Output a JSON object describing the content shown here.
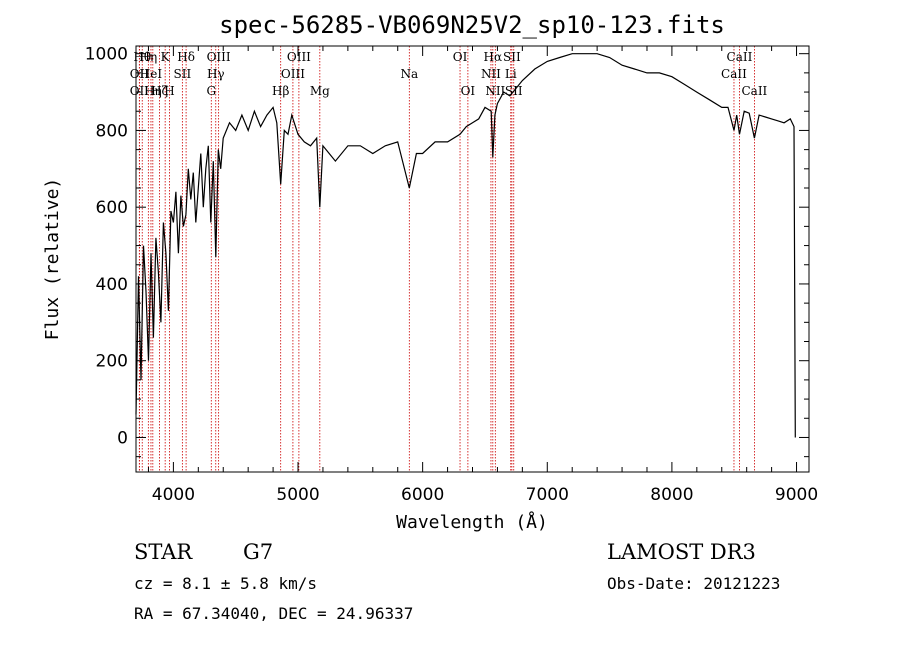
{
  "chart_data": {
    "type": "line",
    "title": "spec-56285-VB069N25V2_sp10-123.fits",
    "xlabel": "Wavelength (Å)",
    "ylabel": "Flux (relative)",
    "xlim": [
      3700,
      9100
    ],
    "ylim": [
      -90,
      1020
    ],
    "xticks": [
      4000,
      5000,
      6000,
      7000,
      8000,
      9000
    ],
    "yticks": [
      0,
      200,
      400,
      600,
      800,
      1000
    ],
    "grid": false,
    "line_color": "#000000",
    "marker_color": "#cc0000",
    "series": [
      {
        "x": [
          3700,
          3720,
          3740,
          3760,
          3780,
          3800,
          3820,
          3840,
          3860,
          3880,
          3900,
          3920,
          3940,
          3960,
          3980,
          4000,
          4020,
          4040,
          4060,
          4080,
          4100,
          4120,
          4140,
          4160,
          4180,
          4200,
          4220,
          4240,
          4260,
          4280,
          4300,
          4320,
          4340,
          4360,
          4380,
          4400,
          4450,
          4500,
          4550,
          4600,
          4650,
          4700,
          4750,
          4800,
          4830,
          4861,
          4890,
          4920,
          4950,
          5000,
          5050,
          5100,
          5150,
          5175,
          5200,
          5250,
          5300,
          5400,
          5500,
          5600,
          5700,
          5800,
          5893,
          5950,
          6000,
          6100,
          6200,
          6300,
          6350,
          6400,
          6450,
          6500,
          6550,
          6563,
          6580,
          6600,
          6650,
          6700,
          6800,
          6900,
          7000,
          7100,
          7200,
          7300,
          7400,
          7500,
          7600,
          7700,
          7800,
          7900,
          8000,
          8100,
          8200,
          8300,
          8400,
          8450,
          8498,
          8520,
          8542,
          8580,
          8620,
          8662,
          8700,
          8750,
          8800,
          8850,
          8900,
          8950,
          8980,
          8990
        ],
        "y": [
          60,
          420,
          150,
          500,
          380,
          200,
          480,
          260,
          520,
          430,
          300,
          560,
          480,
          330,
          590,
          560,
          640,
          480,
          630,
          550,
          580,
          700,
          620,
          690,
          560,
          650,
          740,
          600,
          700,
          760,
          560,
          720,
          470,
          750,
          700,
          780,
          820,
          800,
          840,
          800,
          850,
          810,
          840,
          860,
          820,
          660,
          800,
          790,
          840,
          790,
          770,
          760,
          780,
          600,
          760,
          740,
          720,
          760,
          760,
          740,
          760,
          770,
          650,
          740,
          740,
          770,
          770,
          790,
          810,
          820,
          830,
          860,
          850,
          730,
          840,
          870,
          900,
          890,
          930,
          960,
          980,
          990,
          1000,
          1000,
          1000,
          990,
          970,
          960,
          950,
          950,
          940,
          920,
          900,
          880,
          860,
          860,
          800,
          840,
          790,
          850,
          845,
          780,
          840,
          835,
          830,
          825,
          820,
          830,
          810,
          0
        ]
      }
    ],
    "lines": [
      {
        "x": 3750,
        "row": 1,
        "label": "Hθ"
      },
      {
        "x": 3727,
        "row": 2,
        "label": "OII"
      },
      {
        "x": 3727,
        "row": 3,
        "label": "OII"
      },
      {
        "x": 3799,
        "row": 1,
        "label": "Hη"
      },
      {
        "x": 3820,
        "row": 2,
        "label": "HeI"
      },
      {
        "x": 3835,
        "row": 3,
        "label": "Hη"
      },
      {
        "x": 3889,
        "row": 3,
        "label": "Hζ"
      },
      {
        "x": 3934,
        "row": 1,
        "label": "K"
      },
      {
        "x": 3969,
        "row": 3,
        "label": "H"
      },
      {
        "x": 4072,
        "row": 2,
        "label": "SII"
      },
      {
        "x": 4102,
        "row": 1,
        "label": "Hδ"
      },
      {
        "x": 4304,
        "row": 3,
        "label": "G"
      },
      {
        "x": 4340,
        "row": 2,
        "label": "Hγ"
      },
      {
        "x": 4363,
        "row": 1,
        "label": "OIII"
      },
      {
        "x": 4861,
        "row": 3,
        "label": "Hβ"
      },
      {
        "x": 4959,
        "row": 2,
        "label": "OIII"
      },
      {
        "x": 5007,
        "row": 1,
        "label": "OIII"
      },
      {
        "x": 5175,
        "row": 3,
        "label": "Mg"
      },
      {
        "x": 5893,
        "row": 2,
        "label": "Na"
      },
      {
        "x": 6300,
        "row": 1,
        "label": "OI"
      },
      {
        "x": 6363,
        "row": 3,
        "label": "OI"
      },
      {
        "x": 6548,
        "row": 2,
        "label": "NII"
      },
      {
        "x": 6563,
        "row": 1,
        "label": "Hα"
      },
      {
        "x": 6583,
        "row": 3,
        "label": "NII"
      },
      {
        "x": 6707,
        "row": 2,
        "label": "Li"
      },
      {
        "x": 6716,
        "row": 1,
        "label": "SII"
      },
      {
        "x": 6731,
        "row": 3,
        "label": "SII"
      },
      {
        "x": 8498,
        "row": 2,
        "label": "CaII"
      },
      {
        "x": 8542,
        "row": 1,
        "label": "CaII"
      },
      {
        "x": 8662,
        "row": 3,
        "label": "CaII"
      }
    ]
  },
  "footer": {
    "class_label": "STAR",
    "subclass": "G7",
    "survey": "LAMOST DR3",
    "cz": "cz = 8.1 ± 5.8 km/s",
    "obs_date": "Obs-Date: 20121223",
    "coords": "RA =  67.34040, DEC =  24.96337"
  }
}
